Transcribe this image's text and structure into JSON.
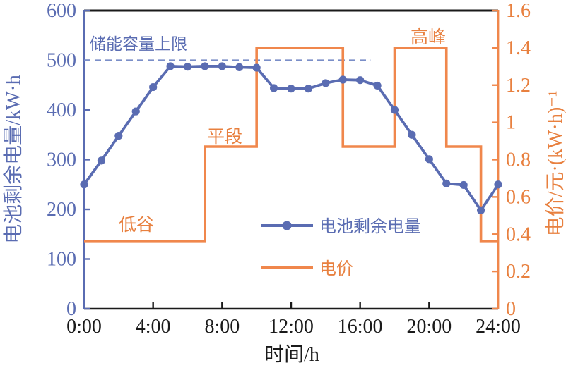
{
  "chart_data": {
    "type": "line",
    "title": "",
    "xlabel": "时间/h",
    "ylabel_left": "电池剩余电量/kW·h",
    "ylabel_right": "电价/元·(kW·h)⁻¹",
    "x_axis": {
      "min": 0,
      "max": 24,
      "tick_hours": [
        0,
        4,
        8,
        12,
        16,
        20,
        24
      ],
      "tick_labels": [
        "0:00",
        "4:00",
        "8:00",
        "12:00",
        "16:00",
        "20:00",
        "24:00"
      ]
    },
    "y_left_axis": {
      "min": 0,
      "max": 600,
      "tick_values": [
        0,
        100,
        200,
        300,
        400,
        500,
        600
      ],
      "tick_labels": [
        "0",
        "100",
        "200",
        "300",
        "400",
        "500",
        "600"
      ]
    },
    "y_right_axis": {
      "min": 0,
      "max": 1.6,
      "tick_values": [
        0,
        0.2,
        0.4,
        0.6,
        0.8,
        1.0,
        1.2,
        1.4,
        1.6
      ],
      "tick_labels": [
        "0",
        "0.2",
        "0.4",
        "0.6",
        "0.8",
        "1",
        "1.2",
        "1.4",
        "1.6"
      ]
    },
    "series": [
      {
        "name": "电池剩余电量",
        "type": "line-markers",
        "axis": "left",
        "x": [
          0,
          1,
          2,
          3,
          4,
          5,
          6,
          7,
          8,
          9,
          10,
          11,
          12,
          13,
          14,
          15,
          16,
          17,
          18,
          19,
          20,
          21,
          22,
          23,
          24
        ],
        "values": [
          250,
          298,
          348,
          397,
          446,
          488,
          487,
          488,
          488,
          486,
          485,
          444,
          443,
          443,
          454,
          461,
          460,
          449,
          400,
          350,
          301,
          252,
          249,
          198,
          250
        ]
      },
      {
        "name": "电价",
        "type": "step",
        "axis": "right",
        "steps": [
          {
            "from_hour": 0,
            "to_hour": 7,
            "price": 0.36
          },
          {
            "from_hour": 7,
            "to_hour": 10,
            "price": 0.87
          },
          {
            "from_hour": 10,
            "to_hour": 15,
            "price": 1.4
          },
          {
            "from_hour": 15,
            "to_hour": 18,
            "price": 0.87
          },
          {
            "from_hour": 18,
            "to_hour": 21,
            "price": 1.4
          },
          {
            "from_hour": 21,
            "to_hour": 23,
            "price": 0.87
          },
          {
            "from_hour": 23,
            "to_hour": 24,
            "price": 0.36
          }
        ]
      }
    ],
    "capacity_limit": {
      "label": "储能容量上限",
      "value": 500,
      "line_start_hour": 0,
      "line_end_hour": 16.6
    },
    "annotations": [
      {
        "text": "低谷"
      },
      {
        "text": "平段"
      },
      {
        "text": "高峰"
      }
    ],
    "legend": {
      "position": "center-bottom-inside"
    },
    "grid": false,
    "colors": {
      "battery_line": "#5A6CB2",
      "battery_axis_text": "#5A6CB2",
      "capacity_dashed": "#7A8EC8",
      "price_line": "#F0874C",
      "price_axis_text": "#E8803F",
      "frame_black": "#1A1A1A"
    }
  }
}
